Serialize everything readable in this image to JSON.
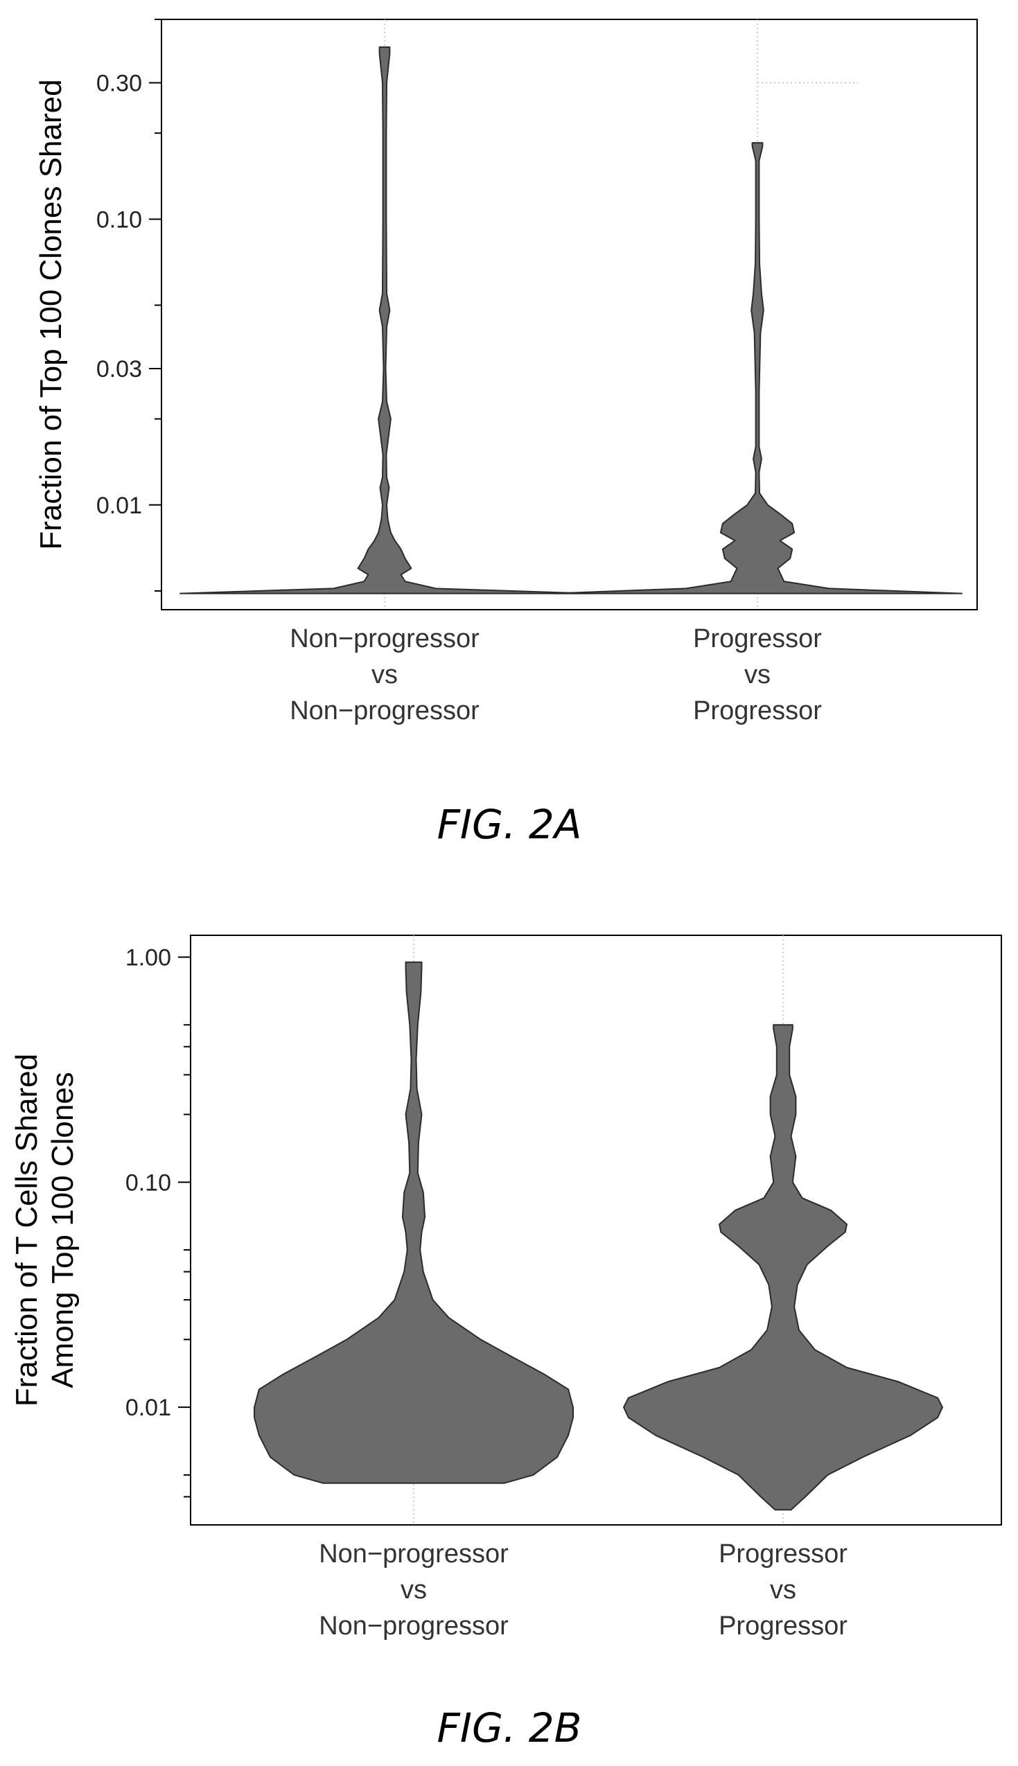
{
  "chart_data": [
    {
      "type": "violin",
      "caption": "FIG. 2A",
      "ylabel": "Fraction of Top 100 Clones Shared",
      "yscale": "log",
      "ylim": [
        0.0043,
        0.5
      ],
      "yticks": [
        {
          "value": 0.01,
          "label": "0.01"
        },
        {
          "value": 0.03,
          "label": "0.03"
        },
        {
          "value": 0.1,
          "label": "0.10"
        },
        {
          "value": 0.3,
          "label": "0.30"
        }
      ],
      "yminor": [
        0.005,
        0.02,
        0.05,
        0.2,
        0.5
      ],
      "categories": [
        [
          "Non−progressor",
          "vs",
          "Non−progressor"
        ],
        [
          "Progressor",
          "vs",
          "Progressor"
        ]
      ],
      "reference_line": {
        "value": 0.3,
        "from_category": 1
      },
      "violins": [
        {
          "profile": [
            [
              0.0049,
              1.0
            ],
            [
              0.0051,
              0.25
            ],
            [
              0.0054,
              0.1
            ],
            [
              0.0057,
              0.08
            ],
            [
              0.006,
              0.13
            ],
            [
              0.0065,
              0.1
            ],
            [
              0.007,
              0.08
            ],
            [
              0.0075,
              0.05
            ],
            [
              0.008,
              0.03
            ],
            [
              0.0086,
              0.02
            ],
            [
              0.009,
              0.015
            ],
            [
              0.01,
              0.01
            ],
            [
              0.0115,
              0.022
            ],
            [
              0.0125,
              0.01
            ],
            [
              0.015,
              0.008
            ],
            [
              0.02,
              0.03
            ],
            [
              0.023,
              0.01
            ],
            [
              0.03,
              0.005
            ],
            [
              0.042,
              0.01
            ],
            [
              0.048,
              0.025
            ],
            [
              0.055,
              0.01
            ],
            [
              0.1,
              0.008
            ],
            [
              0.2,
              0.008
            ],
            [
              0.3,
              0.01
            ],
            [
              0.38,
              0.025
            ],
            [
              0.4,
              0.025
            ]
          ]
        },
        {
          "profile": [
            [
              0.0049,
              1.0
            ],
            [
              0.0051,
              0.35
            ],
            [
              0.0054,
              0.13
            ],
            [
              0.006,
              0.1
            ],
            [
              0.0065,
              0.16
            ],
            [
              0.007,
              0.17
            ],
            [
              0.0075,
              0.11
            ],
            [
              0.008,
              0.18
            ],
            [
              0.0086,
              0.17
            ],
            [
              0.0093,
              0.11
            ],
            [
              0.01,
              0.05
            ],
            [
              0.011,
              0.01
            ],
            [
              0.013,
              0.008
            ],
            [
              0.0145,
              0.02
            ],
            [
              0.016,
              0.008
            ],
            [
              0.025,
              0.008
            ],
            [
              0.04,
              0.015
            ],
            [
              0.048,
              0.03
            ],
            [
              0.055,
              0.02
            ],
            [
              0.07,
              0.01
            ],
            [
              0.1,
              0.008
            ],
            [
              0.16,
              0.008
            ],
            [
              0.18,
              0.025
            ],
            [
              0.185,
              0.025
            ]
          ]
        }
      ]
    },
    {
      "type": "violin",
      "caption": "FIG. 2B",
      "ylabel": [
        "Fraction of T Cells Shared",
        "Among Top 100 Clones"
      ],
      "yscale": "log",
      "ylim": [
        0.003,
        1.25
      ],
      "yticks": [
        {
          "value": 0.01,
          "label": "0.01"
        },
        {
          "value": 0.1,
          "label": "0.10"
        },
        {
          "value": 1.0,
          "label": "1.00"
        }
      ],
      "yminor": [
        0.004,
        0.005,
        0.02,
        0.03,
        0.04,
        0.05,
        0.2,
        0.3,
        0.4,
        0.5
      ],
      "categories": [
        [
          "Non−progressor",
          "vs",
          "Non−progressor"
        ],
        [
          "Progressor",
          "vs",
          "Progressor"
        ]
      ],
      "violins": [
        {
          "profile": [
            [
              0.0046,
              0.57
            ],
            [
              0.005,
              0.75
            ],
            [
              0.006,
              0.9
            ],
            [
              0.0075,
              0.97
            ],
            [
              0.009,
              1.0
            ],
            [
              0.01,
              1.0
            ],
            [
              0.012,
              0.97
            ],
            [
              0.014,
              0.82
            ],
            [
              0.017,
              0.6
            ],
            [
              0.02,
              0.42
            ],
            [
              0.025,
              0.22
            ],
            [
              0.03,
              0.12
            ],
            [
              0.04,
              0.06
            ],
            [
              0.05,
              0.04
            ],
            [
              0.06,
              0.05
            ],
            [
              0.07,
              0.07
            ],
            [
              0.09,
              0.06
            ],
            [
              0.11,
              0.025
            ],
            [
              0.15,
              0.03
            ],
            [
              0.2,
              0.05
            ],
            [
              0.26,
              0.02
            ],
            [
              0.35,
              0.015
            ],
            [
              0.5,
              0.025
            ],
            [
              0.7,
              0.045
            ],
            [
              0.9,
              0.05
            ],
            [
              0.95,
              0.05
            ]
          ]
        },
        {
          "profile": [
            [
              0.0035,
              0.05
            ],
            [
              0.004,
              0.14
            ],
            [
              0.005,
              0.28
            ],
            [
              0.006,
              0.5
            ],
            [
              0.0075,
              0.8
            ],
            [
              0.009,
              0.97
            ],
            [
              0.01,
              1.0
            ],
            [
              0.011,
              0.97
            ],
            [
              0.013,
              0.72
            ],
            [
              0.015,
              0.4
            ],
            [
              0.018,
              0.2
            ],
            [
              0.022,
              0.1
            ],
            [
              0.028,
              0.07
            ],
            [
              0.035,
              0.09
            ],
            [
              0.043,
              0.15
            ],
            [
              0.052,
              0.28
            ],
            [
              0.06,
              0.39
            ],
            [
              0.065,
              0.4
            ],
            [
              0.075,
              0.3
            ],
            [
              0.085,
              0.12
            ],
            [
              0.1,
              0.06
            ],
            [
              0.13,
              0.08
            ],
            [
              0.16,
              0.05
            ],
            [
              0.2,
              0.08
            ],
            [
              0.24,
              0.08
            ],
            [
              0.3,
              0.04
            ],
            [
              0.4,
              0.04
            ],
            [
              0.48,
              0.06
            ],
            [
              0.5,
              0.06
            ]
          ]
        }
      ]
    }
  ]
}
